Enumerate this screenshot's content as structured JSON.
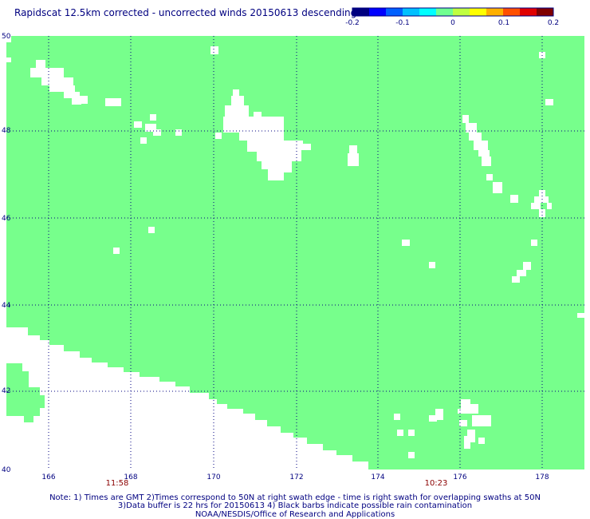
{
  "title": "Rapidscat 12.5km corrected - uncorrected winds 20150613 descending",
  "colorbar": {
    "ticks": [
      "-0.2",
      "-0.1",
      "0",
      "0.1",
      "0.2"
    ],
    "colors": [
      "#00007f",
      "#0000ff",
      "#0060ff",
      "#00c0ff",
      "#00ffff",
      "#70ff90",
      "#c0ff40",
      "#ffff00",
      "#ffb000",
      "#ff5000",
      "#e00000",
      "#7f0000"
    ]
  },
  "map": {
    "land_color": "#ffffff",
    "data_color": "#77ff8c",
    "grid_color": "#000080",
    "lat_labels": [
      "50",
      "48",
      "46",
      "44",
      "42",
      "40"
    ],
    "lon_labels": [
      "166",
      "168",
      "170",
      "172",
      "174",
      "176",
      "178"
    ],
    "times": [
      {
        "text": "11:58",
        "at_lon": "168"
      },
      {
        "text": "10:23",
        "at_lon": "176"
      }
    ]
  },
  "notes": {
    "line1": "Note: 1) Times are GMT 2)Times correspond to 50N at right swath edge - time is right swath for overlapping swaths at 50N",
    "line2": "3)Data buffer is 22 hrs for 20150613 4) Black barbs indicate possible rain contamination",
    "line3": "NOAA/NESDIS/Office of Research and Applications"
  }
}
